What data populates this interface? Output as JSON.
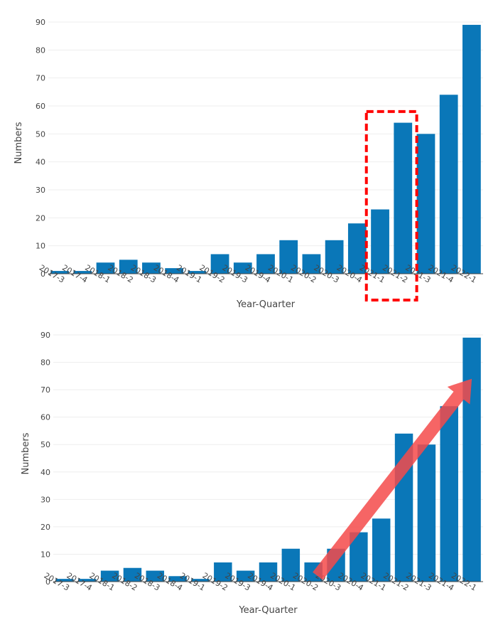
{
  "colors": {
    "bar": "#0a77b8",
    "grid": "#eeeeee",
    "axis_line": "#444444",
    "highlight_box": "#ff0000",
    "arrow": "#f44a4a"
  },
  "chart_data": [
    {
      "type": "bar",
      "categories": [
        "2017-3",
        "2017-4",
        "2018-1",
        "2018-2",
        "2018-3",
        "2018-4",
        "2019-1",
        "2019-2",
        "2019-3",
        "2019-4",
        "2020-1",
        "2020-2",
        "2020-3",
        "2020-4",
        "2021-1",
        "2021-2",
        "2021-3",
        "2021-4",
        "2022-1"
      ],
      "values": [
        1,
        1,
        4,
        5,
        4,
        2,
        1,
        7,
        4,
        7,
        12,
        7,
        12,
        18,
        23,
        54,
        50,
        64,
        89
      ],
      "xlabel": "Year-Quarter",
      "ylabel": "Numbers",
      "ylim": [
        0,
        90
      ],
      "yticks": [
        0,
        10,
        20,
        30,
        40,
        50,
        60,
        70,
        80,
        90
      ],
      "grid": true,
      "annotation": {
        "type": "dashed-box",
        "covers_categories": [
          "2021-1",
          "2021-2"
        ]
      }
    },
    {
      "type": "bar",
      "categories": [
        "2017-3",
        "2017-4",
        "2018-1",
        "2018-2",
        "2018-3",
        "2018-4",
        "2019-1",
        "2019-2",
        "2019-3",
        "2019-4",
        "2020-1",
        "2020-2",
        "2020-3",
        "2020-4",
        "2021-1",
        "2021-2",
        "2021-3",
        "2021-4",
        "2022-1"
      ],
      "values": [
        1,
        1,
        4,
        5,
        4,
        2,
        1,
        7,
        4,
        7,
        12,
        7,
        12,
        18,
        23,
        54,
        50,
        64,
        89
      ],
      "xlabel": "Year-Quarter",
      "ylabel": "Numbers",
      "ylim": [
        0,
        90
      ],
      "yticks": [
        0,
        10,
        20,
        30,
        40,
        50,
        60,
        70,
        80,
        90
      ],
      "grid": true,
      "annotation": {
        "type": "trend-arrow",
        "from": {
          "category": "2020-2",
          "value": 2
        },
        "to": {
          "category": "2022-1",
          "value": 74
        }
      }
    }
  ]
}
